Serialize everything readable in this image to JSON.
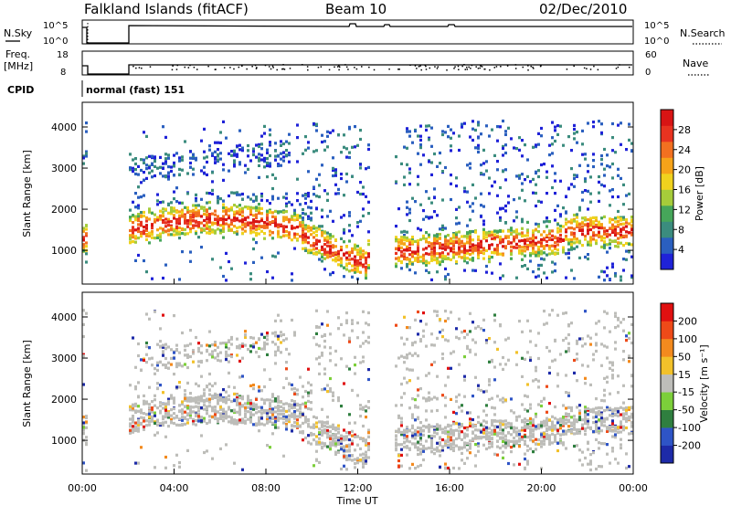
{
  "header": {
    "station": "Falkland Islands (fitACF)",
    "beam": "Beam 10",
    "date": "02/Dec/2010"
  },
  "status_panels": {
    "nsky_label": "N.Sky",
    "nsearch_label": "N.Search",
    "nsky_ticks": [
      "10^5",
      "10^0"
    ],
    "nsearch_ticks": [
      "10^5",
      "10^0"
    ],
    "freq_label": "Freq.",
    "freq_unit": "[MHz]",
    "freq_ticks": [
      "18",
      "8"
    ],
    "nave_label": "Nave",
    "nave_ticks": [
      "60",
      "0"
    ],
    "cpid_label": "CPID",
    "cpid_value": "normal (fast) 151"
  },
  "chart_data": [
    {
      "type": "heatmap",
      "name": "power-panel",
      "ylabel": "Slant Range [km]",
      "xlabel": "",
      "x_range_hours": [
        0,
        24
      ],
      "ylim": [
        180,
        4600
      ],
      "yticks": [
        "1000",
        "2000",
        "3000",
        "4000"
      ],
      "colorbar": {
        "label": "Power [dB]",
        "ticks": [
          "4",
          "8",
          "12",
          "16",
          "20",
          "24",
          "28"
        ],
        "colors": [
          "#1f22d8",
          "#2a5fbf",
          "#3b8c7e",
          "#46a65a",
          "#a6cc3a",
          "#f0d21e",
          "#f6a319",
          "#f27020",
          "#e83320",
          "#d81414"
        ]
      },
      "data_gaps_hours": [
        [
          0.15,
          2.0
        ],
        [
          12.3,
          13.5
        ]
      ]
    },
    {
      "type": "heatmap",
      "name": "velocity-panel",
      "ylabel": "Slant Range [km]",
      "xlabel": "Time UT",
      "x_range_hours": [
        0,
        24
      ],
      "ylim": [
        180,
        4600
      ],
      "yticks": [
        "1000",
        "2000",
        "3000",
        "4000"
      ],
      "xticks": [
        "00:00",
        "04:00",
        "08:00",
        "12:00",
        "16:00",
        "20:00",
        "00:00"
      ],
      "colorbar": {
        "label": "Velocity [m s⁻¹]",
        "ticks": [
          "200",
          "100",
          "50",
          "15",
          "-15",
          "-50",
          "-100",
          "-200"
        ],
        "colors": [
          "#1d2aa8",
          "#2e54c6",
          "#2f7f3f",
          "#7ccf3a",
          "#bdbdb9",
          "#f2c12a",
          "#f38a1e",
          "#ee4a18",
          "#e01010"
        ]
      },
      "data_gaps_hours": [
        [
          0.15,
          2.0
        ],
        [
          12.3,
          13.5
        ]
      ]
    }
  ]
}
